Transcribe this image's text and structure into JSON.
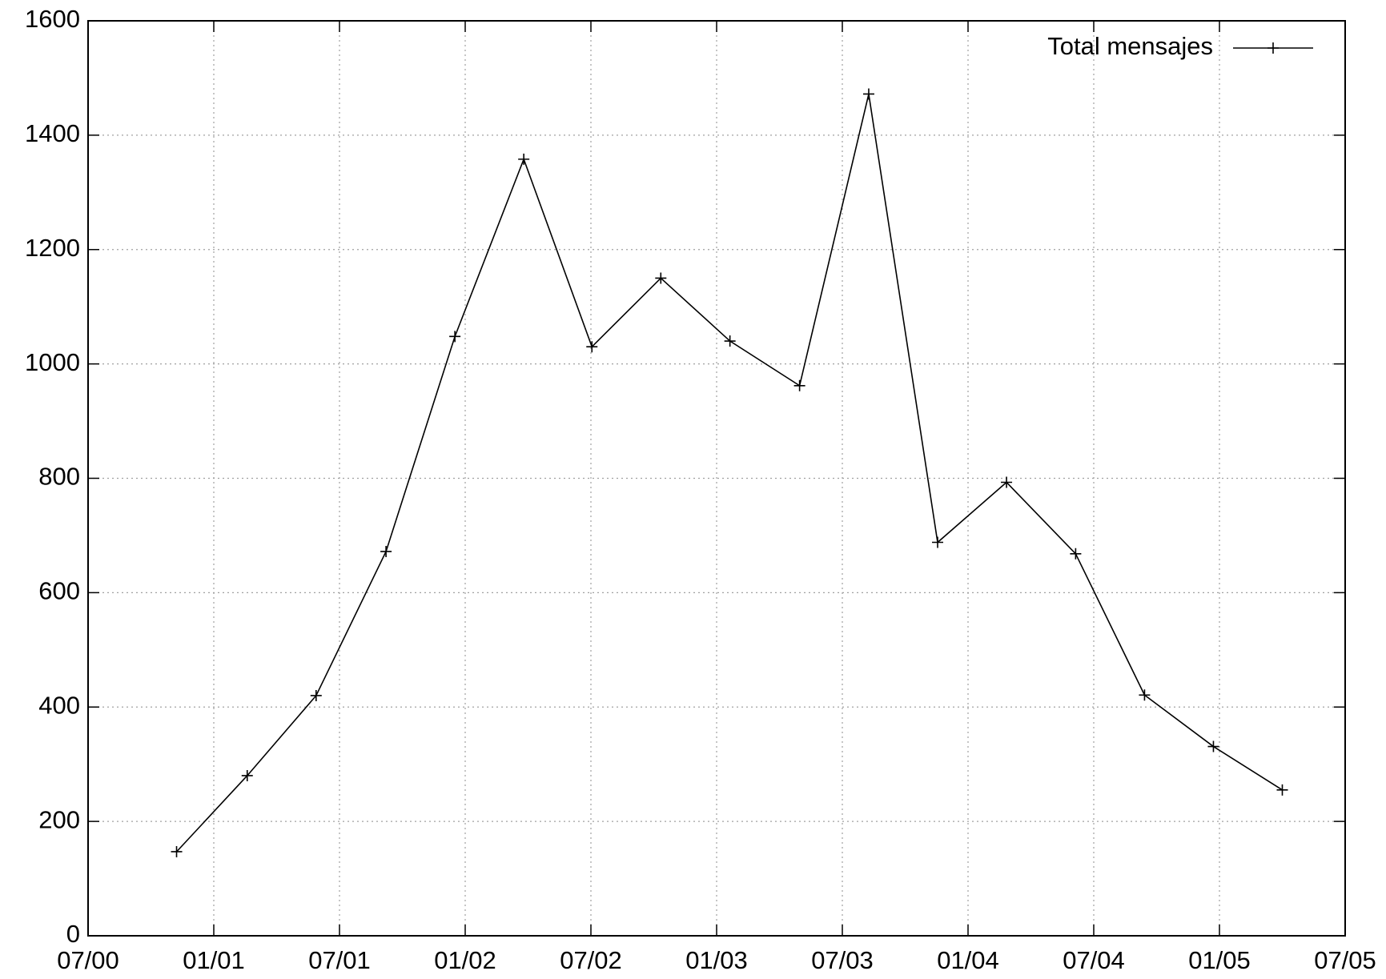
{
  "chart_data": {
    "type": "line",
    "x": [
      2000.852,
      2001.133,
      2001.407,
      2001.685,
      2001.959,
      2002.233,
      2002.504,
      2002.778,
      2003.053,
      2003.33,
      2003.605,
      2003.879,
      2004.153,
      2004.428,
      2004.702,
      2004.976,
      2005.25
    ],
    "series": [
      {
        "name": "Total mensajes",
        "color": "#000000",
        "values": [
          147,
          280,
          420,
          672,
          1048,
          1358,
          1030,
          1150,
          1040,
          962,
          1472,
          688,
          793,
          668,
          421,
          331,
          255
        ]
      }
    ],
    "xlim": [
      2000.5,
      2005.5
    ],
    "xticks": [
      {
        "value": 2000.5,
        "label": "07/00"
      },
      {
        "value": 2001.0,
        "label": "01/01"
      },
      {
        "value": 2001.5,
        "label": "07/01"
      },
      {
        "value": 2002.0,
        "label": "01/02"
      },
      {
        "value": 2002.5,
        "label": "07/02"
      },
      {
        "value": 2003.0,
        "label": "01/03"
      },
      {
        "value": 2003.5,
        "label": "07/03"
      },
      {
        "value": 2004.0,
        "label": "01/04"
      },
      {
        "value": 2004.5,
        "label": "07/04"
      },
      {
        "value": 2005.0,
        "label": "01/05"
      },
      {
        "value": 2005.5,
        "label": "07/05"
      }
    ],
    "ylim": [
      0,
      1600
    ],
    "yticks": [
      0,
      200,
      400,
      600,
      800,
      1000,
      1200,
      1400,
      1600
    ],
    "grid": true,
    "legend": "top-right"
  }
}
